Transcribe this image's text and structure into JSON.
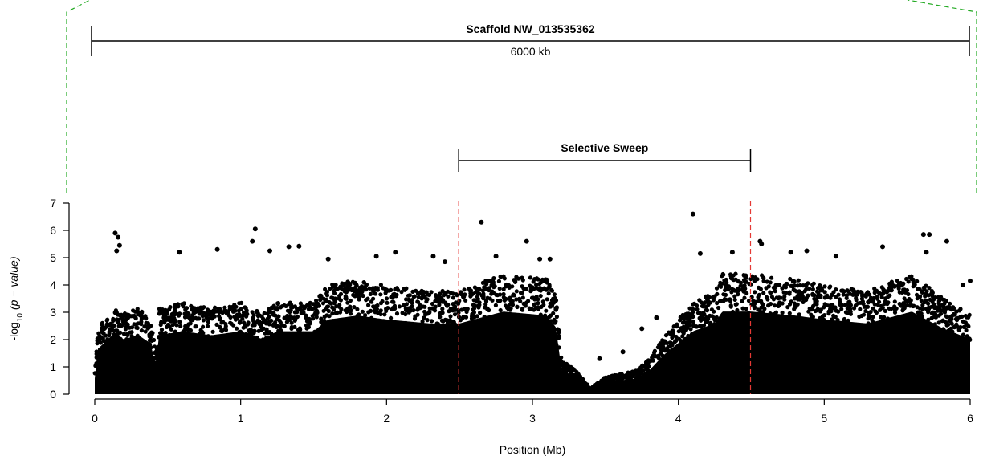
{
  "chart_data": {
    "type": "scatter",
    "title": "",
    "xlabel": "Position (Mb)",
    "ylabel_prefix": "-log",
    "ylabel_sub": "10",
    "ylabel_rest": "(p − value)",
    "xlim": [
      0,
      6
    ],
    "ylim": [
      0,
      7
    ],
    "xticks": [
      0,
      1,
      2,
      3,
      4,
      5,
      6
    ],
    "yticks": [
      0,
      1,
      2,
      3,
      4,
      5,
      6,
      7
    ],
    "grid": false,
    "point_color": "#000000",
    "scaffold": {
      "label": "Scaffold NW_013535362",
      "length_label": "6000 kb",
      "start": 0,
      "end": 6
    },
    "sweep": {
      "label": "Selective Sweep",
      "start": 2.5,
      "end": 4.5,
      "line_color": "#e53935"
    },
    "zoom_line_color": "#22aa22",
    "density_profile": [
      {
        "x": 0.0,
        "top": 0.8
      },
      {
        "x": 0.02,
        "top": 2.3
      },
      {
        "x": 0.12,
        "top": 3.0
      },
      {
        "x": 0.2,
        "top": 2.8
      },
      {
        "x": 0.3,
        "top": 3.0
      },
      {
        "x": 0.38,
        "top": 2.6
      },
      {
        "x": 0.42,
        "top": 1.5
      },
      {
        "x": 0.44,
        "top": 3.0
      },
      {
        "x": 0.6,
        "top": 3.2
      },
      {
        "x": 0.8,
        "top": 3.0
      },
      {
        "x": 1.0,
        "top": 3.2
      },
      {
        "x": 1.15,
        "top": 2.8
      },
      {
        "x": 1.25,
        "top": 3.2
      },
      {
        "x": 1.5,
        "top": 3.2
      },
      {
        "x": 1.6,
        "top": 3.8
      },
      {
        "x": 1.8,
        "top": 4.0
      },
      {
        "x": 2.0,
        "top": 3.8
      },
      {
        "x": 2.3,
        "top": 3.6
      },
      {
        "x": 2.5,
        "top": 3.6
      },
      {
        "x": 2.8,
        "top": 4.2
      },
      {
        "x": 3.1,
        "top": 4.0
      },
      {
        "x": 3.16,
        "top": 3.4
      },
      {
        "x": 3.2,
        "top": 1.2
      },
      {
        "x": 3.3,
        "top": 0.8
      },
      {
        "x": 3.4,
        "top": 0.2
      },
      {
        "x": 3.5,
        "top": 0.6
      },
      {
        "x": 3.7,
        "top": 0.8
      },
      {
        "x": 3.8,
        "top": 1.2
      },
      {
        "x": 3.9,
        "top": 2.0
      },
      {
        "x": 4.0,
        "top": 2.6
      },
      {
        "x": 4.1,
        "top": 3.2
      },
      {
        "x": 4.25,
        "top": 3.6
      },
      {
        "x": 4.3,
        "top": 4.2
      },
      {
        "x": 4.5,
        "top": 4.2
      },
      {
        "x": 4.8,
        "top": 4.0
      },
      {
        "x": 5.0,
        "top": 3.8
      },
      {
        "x": 5.3,
        "top": 3.6
      },
      {
        "x": 5.6,
        "top": 4.2
      },
      {
        "x": 5.8,
        "top": 3.4
      },
      {
        "x": 6.0,
        "top": 2.8
      }
    ],
    "outliers": [
      {
        "x": 0.14,
        "y": 5.9
      },
      {
        "x": 0.16,
        "y": 5.75
      },
      {
        "x": 0.17,
        "y": 5.45
      },
      {
        "x": 0.15,
        "y": 5.25
      },
      {
        "x": 0.58,
        "y": 5.2
      },
      {
        "x": 0.84,
        "y": 5.3
      },
      {
        "x": 1.08,
        "y": 5.6
      },
      {
        "x": 1.1,
        "y": 6.05
      },
      {
        "x": 1.2,
        "y": 5.25
      },
      {
        "x": 1.33,
        "y": 5.4
      },
      {
        "x": 1.4,
        "y": 5.42
      },
      {
        "x": 1.6,
        "y": 4.95
      },
      {
        "x": 1.93,
        "y": 5.05
      },
      {
        "x": 2.06,
        "y": 5.2
      },
      {
        "x": 2.32,
        "y": 5.05
      },
      {
        "x": 2.4,
        "y": 4.85
      },
      {
        "x": 2.65,
        "y": 6.3
      },
      {
        "x": 2.75,
        "y": 5.05
      },
      {
        "x": 2.96,
        "y": 5.6
      },
      {
        "x": 3.05,
        "y": 4.95
      },
      {
        "x": 3.12,
        "y": 4.95
      },
      {
        "x": 3.75,
        "y": 2.4
      },
      {
        "x": 3.62,
        "y": 1.55
      },
      {
        "x": 3.46,
        "y": 1.3
      },
      {
        "x": 3.85,
        "y": 2.8
      },
      {
        "x": 4.1,
        "y": 6.6
      },
      {
        "x": 4.15,
        "y": 5.15
      },
      {
        "x": 4.37,
        "y": 5.2
      },
      {
        "x": 4.56,
        "y": 5.6
      },
      {
        "x": 4.57,
        "y": 5.5
      },
      {
        "x": 4.77,
        "y": 5.2
      },
      {
        "x": 4.88,
        "y": 5.25
      },
      {
        "x": 5.08,
        "y": 5.05
      },
      {
        "x": 5.4,
        "y": 5.4
      },
      {
        "x": 5.68,
        "y": 5.85
      },
      {
        "x": 5.72,
        "y": 5.85
      },
      {
        "x": 5.7,
        "y": 5.2
      },
      {
        "x": 5.84,
        "y": 5.6
      },
      {
        "x": 6.0,
        "y": 4.15
      },
      {
        "x": 5.95,
        "y": 4.0
      }
    ]
  }
}
